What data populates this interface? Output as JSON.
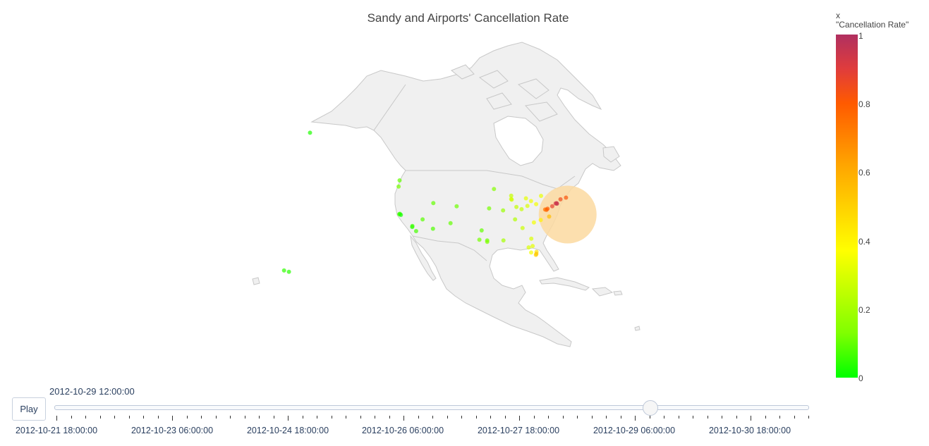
{
  "title": "Sandy and Airports' Cancellation Rate",
  "colorbar": {
    "title_line1": "x",
    "title_line2": "\"Cancellation Rate\"",
    "ticks": [
      "1",
      "0.8",
      "0.6",
      "0.4",
      "0.2",
      "0"
    ],
    "colors": [
      "#00ff00",
      "#80ff00",
      "#ffff00",
      "#ffa500",
      "#ff5a00",
      "#e03c3c",
      "#b03060"
    ]
  },
  "slider": {
    "play_label": "Play",
    "current_value": "2012-10-29 12:00:00",
    "position_fraction": 0.79,
    "labels": [
      "2012-10-21 18:00:00",
      "2012-10-23 06:00:00",
      "2012-10-24 18:00:00",
      "2012-10-26 06:00:00",
      "2012-10-27 18:00:00",
      "2012-10-29 06:00:00",
      "2012-10-30 18:00:00"
    ]
  },
  "map": {
    "land_color": "#f0f0f0",
    "border_color": "#c8c8c8",
    "storm_color": "#fcd9a0",
    "projection": "orthographic",
    "airports": [
      {
        "name": "airport-anchorage",
        "lon": -149.9,
        "lat": 61.2,
        "rate": 0.03
      },
      {
        "name": "airport-seattle",
        "lon": -122.3,
        "lat": 47.4,
        "rate": 0.1
      },
      {
        "name": "airport-portland",
        "lon": -122.6,
        "lat": 45.6,
        "rate": 0.12
      },
      {
        "name": "airport-sfo",
        "lon": -122.4,
        "lat": 37.6,
        "rate": 0.08
      },
      {
        "name": "airport-oakland",
        "lon": -122.2,
        "lat": 37.7,
        "rate": 0.05
      },
      {
        "name": "airport-sjc",
        "lon": -121.9,
        "lat": 37.4,
        "rate": 0.02
      },
      {
        "name": "airport-lax",
        "lon": -118.4,
        "lat": 33.9,
        "rate": 0.04
      },
      {
        "name": "airport-burbank",
        "lon": -118.35,
        "lat": 34.2,
        "rate": 0.06
      },
      {
        "name": "airport-san-diego",
        "lon": -117.2,
        "lat": 32.7,
        "rate": 0.07
      },
      {
        "name": "airport-las-vegas",
        "lon": -115.2,
        "lat": 36.1,
        "rate": 0.09
      },
      {
        "name": "airport-phoenix",
        "lon": -112.0,
        "lat": 33.4,
        "rate": 0.08
      },
      {
        "name": "airport-slc",
        "lon": -111.9,
        "lat": 40.8,
        "rate": 0.1
      },
      {
        "name": "airport-denver",
        "lon": -104.7,
        "lat": 39.9,
        "rate": 0.11
      },
      {
        "name": "airport-albuquerque",
        "lon": -106.6,
        "lat": 35.0,
        "rate": 0.1
      },
      {
        "name": "airport-minneapolis",
        "lon": -93.2,
        "lat": 44.9,
        "rate": 0.14
      },
      {
        "name": "airport-kansas-city",
        "lon": -94.7,
        "lat": 39.3,
        "rate": 0.12
      },
      {
        "name": "airport-dallas",
        "lon": -97.0,
        "lat": 32.9,
        "rate": 0.1
      },
      {
        "name": "airport-austin",
        "lon": -97.7,
        "lat": 30.2,
        "rate": 0.12
      },
      {
        "name": "airport-houston",
        "lon": -95.3,
        "lat": 29.98,
        "rate": 0.11
      },
      {
        "name": "airport-houston-hobby",
        "lon": -95.3,
        "lat": 29.6,
        "rate": 0.13
      },
      {
        "name": "airport-new-orleans",
        "lon": -90.3,
        "lat": 30.0,
        "rate": 0.2
      },
      {
        "name": "airport-st-louis",
        "lon": -90.4,
        "lat": 38.7,
        "rate": 0.18
      },
      {
        "name": "airport-chicago-ord",
        "lon": -87.9,
        "lat": 41.98,
        "rate": 0.3
      },
      {
        "name": "airport-chicago-mdw",
        "lon": -87.75,
        "lat": 41.8,
        "rate": 0.28
      },
      {
        "name": "airport-milwaukee",
        "lon": -87.9,
        "lat": 42.95,
        "rate": 0.26
      },
      {
        "name": "airport-detroit",
        "lon": -83.35,
        "lat": 42.2,
        "rate": 0.32
      },
      {
        "name": "airport-cleveland",
        "lon": -81.8,
        "lat": 41.4,
        "rate": 0.34
      },
      {
        "name": "airport-columbus",
        "lon": -82.9,
        "lat": 40.0,
        "rate": 0.3
      },
      {
        "name": "airport-indianapolis",
        "lon": -86.3,
        "lat": 39.7,
        "rate": 0.25
      },
      {
        "name": "airport-cincinnati",
        "lon": -84.7,
        "lat": 39.05,
        "rate": 0.26
      },
      {
        "name": "airport-nashville",
        "lon": -86.7,
        "lat": 36.1,
        "rate": 0.22
      },
      {
        "name": "airport-atlanta",
        "lon": -84.4,
        "lat": 33.6,
        "rate": 0.27
      },
      {
        "name": "airport-charlotte",
        "lon": -80.9,
        "lat": 35.2,
        "rate": 0.35
      },
      {
        "name": "airport-raleigh",
        "lon": -78.8,
        "lat": 35.9,
        "rate": 0.4
      },
      {
        "name": "airport-pittsburgh",
        "lon": -80.2,
        "lat": 40.5,
        "rate": 0.35
      },
      {
        "name": "airport-buffalo",
        "lon": -78.7,
        "lat": 42.9,
        "rate": 0.33
      },
      {
        "name": "airport-jacksonville",
        "lon": -81.7,
        "lat": 30.5,
        "rate": 0.3
      },
      {
        "name": "airport-orlando",
        "lon": -81.3,
        "lat": 28.4,
        "rate": 0.32
      },
      {
        "name": "airport-tampa",
        "lon": -82.5,
        "lat": 27.98,
        "rate": 0.3
      },
      {
        "name": "airport-ft-myers",
        "lon": -81.75,
        "lat": 26.5,
        "rate": 0.35
      },
      {
        "name": "airport-west-palm",
        "lon": -80.1,
        "lat": 26.7,
        "rate": 0.45
      },
      {
        "name": "airport-ft-lauderdale",
        "lon": -80.15,
        "lat": 26.1,
        "rate": 0.55
      },
      {
        "name": "airport-miami",
        "lon": -80.3,
        "lat": 25.8,
        "rate": 0.5
      },
      {
        "name": "airport-dca",
        "lon": -77.0,
        "lat": 38.85,
        "rate": 0.78
      },
      {
        "name": "airport-iad",
        "lon": -77.45,
        "lat": 38.95,
        "rate": 0.75
      },
      {
        "name": "airport-bwi",
        "lon": -76.7,
        "lat": 39.2,
        "rate": 0.8
      },
      {
        "name": "airport-philadelphia",
        "lon": -75.25,
        "lat": 39.9,
        "rate": 0.88
      },
      {
        "name": "airport-newark",
        "lon": -74.2,
        "lat": 40.7,
        "rate": 0.92
      },
      {
        "name": "airport-jfk",
        "lon": -73.8,
        "lat": 40.65,
        "rate": 0.95
      },
      {
        "name": "airport-lga",
        "lon": -73.9,
        "lat": 40.78,
        "rate": 0.95
      },
      {
        "name": "airport-boston",
        "lon": -71.0,
        "lat": 42.4,
        "rate": 0.82
      },
      {
        "name": "airport-hartford",
        "lon": -72.7,
        "lat": 41.9,
        "rate": 0.85
      },
      {
        "name": "airport-norfolk",
        "lon": -76.2,
        "lat": 36.9,
        "rate": 0.55
      },
      {
        "name": "airport-honolulu",
        "lon": -157.9,
        "lat": 21.3,
        "rate": 0.05
      },
      {
        "name": "airport-maui",
        "lon": -156.4,
        "lat": 20.9,
        "rate": 0.04
      }
    ],
    "storm": {
      "lon": -70.5,
      "lat": 37.5
    }
  }
}
